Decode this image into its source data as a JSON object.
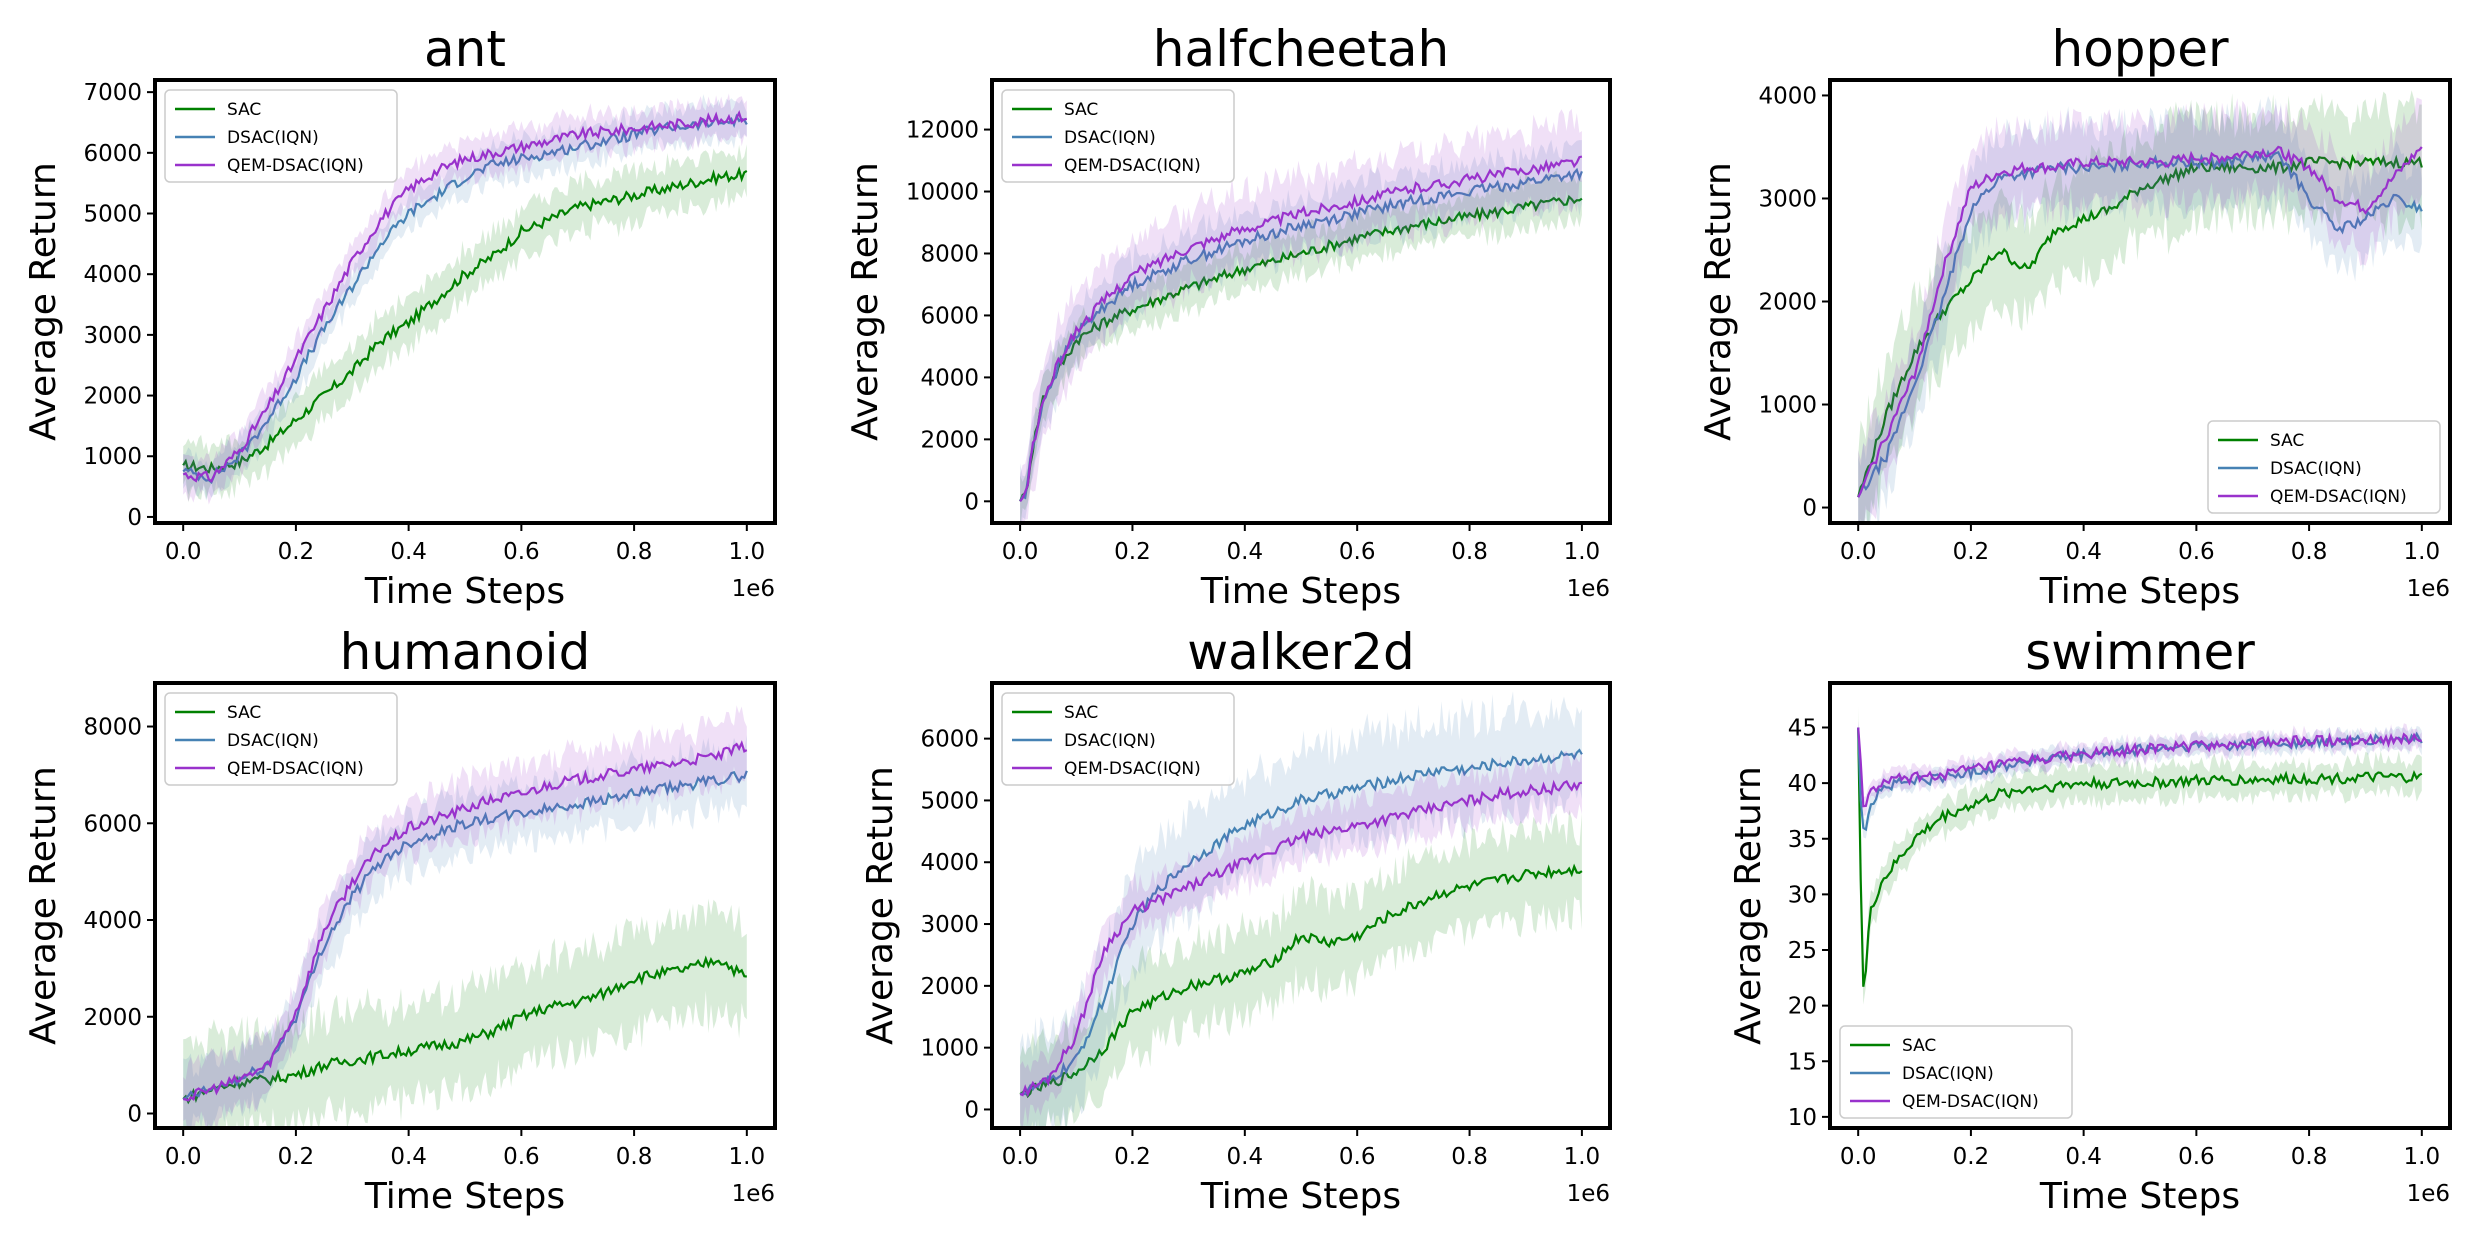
{
  "chart_data": [
    {
      "type": "line",
      "title": "ant",
      "xlabel": "Time Steps",
      "ylabel": "Average Return",
      "x_offset_label": "1e6",
      "xlim": [
        -0.05,
        1.05
      ],
      "ylim": [
        -100,
        7200
      ],
      "xticks": [
        0.0,
        0.2,
        0.4,
        0.6,
        0.8,
        1.0
      ],
      "xtick_labels": [
        "0.0",
        "0.2",
        "0.4",
        "0.6",
        "0.8",
        "1.0"
      ],
      "yticks": [
        0,
        1000,
        2000,
        3000,
        4000,
        5000,
        6000,
        7000
      ],
      "ytick_labels": [
        "0",
        "1000",
        "2000",
        "3000",
        "4000",
        "5000",
        "6000",
        "7000"
      ],
      "legend_loc": "upper-left",
      "series": [
        {
          "name": "SAC",
          "x": [
            0,
            0.05,
            0.1,
            0.15,
            0.2,
            0.25,
            0.3,
            0.35,
            0.4,
            0.45,
            0.5,
            0.55,
            0.6,
            0.65,
            0.7,
            0.75,
            0.8,
            0.85,
            0.9,
            0.95,
            1.0
          ],
          "y": [
            850,
            800,
            900,
            1200,
            1600,
            2000,
            2400,
            2900,
            3200,
            3600,
            4000,
            4300,
            4700,
            4900,
            5100,
            5200,
            5300,
            5400,
            5500,
            5600,
            5650
          ],
          "band": 400
        },
        {
          "name": "DSAC(IQN)",
          "x": [
            0,
            0.05,
            0.1,
            0.15,
            0.2,
            0.25,
            0.3,
            0.35,
            0.4,
            0.45,
            0.5,
            0.55,
            0.6,
            0.65,
            0.7,
            0.75,
            0.8,
            0.85,
            0.9,
            0.95,
            1.0
          ],
          "y": [
            750,
            650,
            1000,
            1600,
            2300,
            3100,
            3800,
            4500,
            5000,
            5300,
            5600,
            5800,
            5900,
            6000,
            6100,
            6200,
            6300,
            6400,
            6450,
            6500,
            6550
          ],
          "band": 300
        },
        {
          "name": "QEM-DSAC(IQN)",
          "x": [
            0,
            0.05,
            0.1,
            0.15,
            0.2,
            0.25,
            0.3,
            0.35,
            0.4,
            0.45,
            0.5,
            0.55,
            0.6,
            0.65,
            0.7,
            0.75,
            0.8,
            0.85,
            0.9,
            0.95,
            1.0
          ],
          "y": [
            700,
            650,
            1100,
            1800,
            2600,
            3400,
            4200,
            4900,
            5400,
            5700,
            5900,
            6000,
            6100,
            6200,
            6300,
            6350,
            6400,
            6450,
            6500,
            6550,
            6600
          ],
          "band": 300
        }
      ]
    },
    {
      "type": "line",
      "title": "halfcheetah",
      "xlabel": "Time Steps",
      "ylabel": "Average Return",
      "x_offset_label": "1e6",
      "xlim": [
        -0.05,
        1.05
      ],
      "ylim": [
        -700,
        13600
      ],
      "xticks": [
        0.0,
        0.2,
        0.4,
        0.6,
        0.8,
        1.0
      ],
      "xtick_labels": [
        "0.0",
        "0.2",
        "0.4",
        "0.6",
        "0.8",
        "1.0"
      ],
      "yticks": [
        0,
        2000,
        4000,
        6000,
        8000,
        10000,
        12000
      ],
      "ytick_labels": [
        "0",
        "2000",
        "4000",
        "6000",
        "8000",
        "10000",
        "12000"
      ],
      "legend_loc": "upper-left",
      "series": [
        {
          "name": "SAC",
          "x": [
            0,
            0.01,
            0.02,
            0.04,
            0.06,
            0.08,
            0.1,
            0.15,
            0.2,
            0.3,
            0.4,
            0.5,
            0.6,
            0.7,
            0.8,
            0.9,
            1.0
          ],
          "y": [
            0,
            200,
            1500,
            3300,
            4000,
            4600,
            5200,
            5800,
            6200,
            6900,
            7500,
            8000,
            8500,
            8900,
            9200,
            9500,
            9800
          ],
          "band": 700
        },
        {
          "name": "DSAC(IQN)",
          "x": [
            0,
            0.01,
            0.02,
            0.04,
            0.06,
            0.08,
            0.1,
            0.15,
            0.2,
            0.3,
            0.4,
            0.5,
            0.6,
            0.7,
            0.8,
            0.9,
            1.0
          ],
          "y": [
            0,
            200,
            1500,
            3200,
            4000,
            4800,
            5400,
            6300,
            7000,
            7800,
            8400,
            8900,
            9300,
            9700,
            10000,
            10300,
            10600
          ],
          "band": 900
        },
        {
          "name": "QEM-DSAC(IQN)",
          "x": [
            0,
            0.01,
            0.02,
            0.04,
            0.06,
            0.08,
            0.1,
            0.15,
            0.2,
            0.3,
            0.4,
            0.5,
            0.6,
            0.7,
            0.8,
            0.9,
            1.0
          ],
          "y": [
            0,
            200,
            1500,
            3200,
            4100,
            4900,
            5500,
            6500,
            7300,
            8200,
            8800,
            9300,
            9700,
            10100,
            10400,
            10700,
            11000
          ],
          "band": 1200
        }
      ]
    },
    {
      "type": "line",
      "title": "hopper",
      "xlabel": "Time Steps",
      "ylabel": "Average Return",
      "x_offset_label": "1e6",
      "xlim": [
        -0.05,
        1.05
      ],
      "ylim": [
        -150,
        4150
      ],
      "xticks": [
        0.0,
        0.2,
        0.4,
        0.6,
        0.8,
        1.0
      ],
      "xtick_labels": [
        "0.0",
        "0.2",
        "0.4",
        "0.6",
        "0.8",
        "1.0"
      ],
      "yticks": [
        0,
        1000,
        2000,
        3000,
        4000
      ],
      "ytick_labels": [
        "0",
        "1000",
        "2000",
        "3000",
        "4000"
      ],
      "legend_loc": "lower-right",
      "series": [
        {
          "name": "SAC",
          "x": [
            0,
            0.05,
            0.1,
            0.15,
            0.2,
            0.25,
            0.3,
            0.35,
            0.4,
            0.45,
            0.5,
            0.55,
            0.6,
            0.65,
            0.7,
            0.75,
            0.8,
            0.85,
            0.9,
            0.95,
            1.0
          ],
          "y": [
            100,
            900,
            1500,
            1900,
            2200,
            2500,
            2300,
            2700,
            2800,
            2900,
            3100,
            3200,
            3300,
            3300,
            3300,
            3300,
            3350,
            3350,
            3350,
            3350,
            3350
          ],
          "band": 500
        },
        {
          "name": "DSAC(IQN)",
          "x": [
            0,
            0.05,
            0.1,
            0.15,
            0.2,
            0.25,
            0.3,
            0.35,
            0.4,
            0.45,
            0.5,
            0.55,
            0.6,
            0.65,
            0.7,
            0.75,
            0.8,
            0.85,
            0.9,
            0.95,
            1.0
          ],
          "y": [
            100,
            500,
            1200,
            2000,
            2900,
            3200,
            3250,
            3300,
            3300,
            3300,
            3350,
            3350,
            3350,
            3350,
            3400,
            3400,
            3000,
            2700,
            2800,
            3000,
            2900
          ],
          "band": 400
        },
        {
          "name": "QEM-DSAC(IQN)",
          "x": [
            0,
            0.05,
            0.1,
            0.15,
            0.2,
            0.25,
            0.3,
            0.35,
            0.4,
            0.45,
            0.5,
            0.55,
            0.6,
            0.65,
            0.7,
            0.75,
            0.8,
            0.85,
            0.9,
            0.95,
            1.0
          ],
          "y": [
            100,
            700,
            1300,
            2300,
            3100,
            3250,
            3300,
            3300,
            3350,
            3350,
            3350,
            3350,
            3400,
            3400,
            3450,
            3450,
            3300,
            3000,
            2900,
            3200,
            3500
          ],
          "band": 400
        }
      ]
    },
    {
      "type": "line",
      "title": "humanoid",
      "xlabel": "Time Steps",
      "ylabel": "Average Return",
      "x_offset_label": "1e6",
      "xlim": [
        -0.05,
        1.05
      ],
      "ylim": [
        -300,
        8900
      ],
      "xticks": [
        0.0,
        0.2,
        0.4,
        0.6,
        0.8,
        1.0
      ],
      "xtick_labels": [
        "0.0",
        "0.2",
        "0.4",
        "0.6",
        "0.8",
        "1.0"
      ],
      "yticks": [
        0,
        2000,
        4000,
        6000,
        8000
      ],
      "ytick_labels": [
        "0",
        "2000",
        "4000",
        "6000",
        "8000"
      ],
      "legend_loc": "upper-left",
      "series": [
        {
          "name": "SAC",
          "x": [
            0,
            0.05,
            0.1,
            0.15,
            0.2,
            0.25,
            0.3,
            0.35,
            0.4,
            0.45,
            0.5,
            0.55,
            0.6,
            0.65,
            0.7,
            0.75,
            0.8,
            0.85,
            0.9,
            0.95,
            1.0
          ],
          "y": [
            300,
            500,
            650,
            700,
            800,
            1000,
            1100,
            1200,
            1300,
            1400,
            1500,
            1700,
            2000,
            2200,
            2300,
            2500,
            2800,
            2900,
            3000,
            3200,
            2800
          ],
          "band": 1000
        },
        {
          "name": "DSAC(IQN)",
          "x": [
            0,
            0.05,
            0.1,
            0.15,
            0.2,
            0.25,
            0.3,
            0.35,
            0.4,
            0.45,
            0.5,
            0.55,
            0.6,
            0.65,
            0.7,
            0.75,
            0.8,
            0.85,
            0.9,
            0.95,
            1.0
          ],
          "y": [
            300,
            500,
            700,
            1000,
            2000,
            3500,
            4500,
            5200,
            5600,
            5800,
            6000,
            6100,
            6200,
            6300,
            6400,
            6500,
            6600,
            6700,
            6800,
            6900,
            7000
          ],
          "band": 600
        },
        {
          "name": "QEM-DSAC(IQN)",
          "x": [
            0,
            0.05,
            0.1,
            0.15,
            0.2,
            0.25,
            0.3,
            0.35,
            0.4,
            0.45,
            0.5,
            0.55,
            0.6,
            0.65,
            0.7,
            0.75,
            0.8,
            0.85,
            0.9,
            0.95,
            1.0
          ],
          "y": [
            300,
            500,
            700,
            1000,
            2100,
            3800,
            4800,
            5500,
            5900,
            6100,
            6300,
            6500,
            6600,
            6800,
            6900,
            7000,
            7100,
            7200,
            7300,
            7400,
            7600
          ],
          "band": 600
        }
      ]
    },
    {
      "type": "line",
      "title": "walker2d",
      "xlabel": "Time Steps",
      "ylabel": "Average Return",
      "x_offset_label": "1e6",
      "xlim": [
        -0.05,
        1.05
      ],
      "ylim": [
        -300,
        6900
      ],
      "xticks": [
        0.0,
        0.2,
        0.4,
        0.6,
        0.8,
        1.0
      ],
      "xtick_labels": [
        "0.0",
        "0.2",
        "0.4",
        "0.6",
        "0.8",
        "1.0"
      ],
      "yticks": [
        0,
        1000,
        2000,
        3000,
        4000,
        5000,
        6000
      ],
      "ytick_labels": [
        "0",
        "1000",
        "2000",
        "3000",
        "4000",
        "5000",
        "6000"
      ],
      "legend_loc": "upper-left",
      "series": [
        {
          "name": "SAC",
          "x": [
            0,
            0.05,
            0.1,
            0.15,
            0.2,
            0.25,
            0.3,
            0.35,
            0.4,
            0.45,
            0.5,
            0.55,
            0.6,
            0.65,
            0.7,
            0.75,
            0.8,
            0.85,
            0.9,
            0.95,
            1.0
          ],
          "y": [
            250,
            400,
            600,
            1000,
            1600,
            1800,
            2000,
            2100,
            2200,
            2400,
            2800,
            2700,
            2800,
            3100,
            3300,
            3500,
            3600,
            3700,
            3800,
            3850,
            3900
          ],
          "band": 700
        },
        {
          "name": "DSAC(IQN)",
          "x": [
            0,
            0.05,
            0.1,
            0.15,
            0.2,
            0.25,
            0.3,
            0.35,
            0.4,
            0.45,
            0.5,
            0.55,
            0.6,
            0.65,
            0.7,
            0.75,
            0.8,
            0.85,
            0.9,
            0.95,
            1.0
          ],
          "y": [
            250,
            450,
            800,
            1800,
            3000,
            3600,
            4000,
            4300,
            4600,
            4800,
            5000,
            5100,
            5200,
            5300,
            5400,
            5500,
            5500,
            5600,
            5650,
            5700,
            5750
          ],
          "band": 800
        },
        {
          "name": "QEM-DSAC(IQN)",
          "x": [
            0,
            0.05,
            0.1,
            0.15,
            0.2,
            0.25,
            0.3,
            0.35,
            0.4,
            0.45,
            0.5,
            0.55,
            0.6,
            0.65,
            0.7,
            0.75,
            0.8,
            0.85,
            0.9,
            0.95,
            1.0
          ],
          "y": [
            250,
            500,
            1200,
            2600,
            3200,
            3400,
            3600,
            3800,
            4000,
            4200,
            4400,
            4500,
            4600,
            4700,
            4800,
            4900,
            5000,
            5100,
            5150,
            5200,
            5250
          ],
          "band": 400
        }
      ]
    },
    {
      "type": "line",
      "title": "swimmer",
      "xlabel": "Time Steps",
      "ylabel": "Average Return",
      "x_offset_label": "1e6",
      "xlim": [
        -0.05,
        1.05
      ],
      "ylim": [
        9,
        49
      ],
      "xticks": [
        0.0,
        0.2,
        0.4,
        0.6,
        0.8,
        1.0
      ],
      "xtick_labels": [
        "0.0",
        "0.2",
        "0.4",
        "0.6",
        "0.8",
        "1.0"
      ],
      "yticks": [
        10,
        15,
        20,
        25,
        30,
        35,
        40,
        45
      ],
      "ytick_labels": [
        "10",
        "15",
        "20",
        "25",
        "30",
        "35",
        "40",
        "45"
      ],
      "legend_loc": "lower-left",
      "series": [
        {
          "name": "SAC",
          "x": [
            0,
            0.005,
            0.01,
            0.02,
            0.04,
            0.07,
            0.1,
            0.15,
            0.2,
            0.25,
            0.3,
            0.4,
            0.5,
            0.6,
            0.7,
            0.8,
            0.9,
            1.0
          ],
          "y": [
            45,
            30,
            20,
            28,
            31,
            33,
            35,
            37,
            38,
            39,
            39.5,
            40,
            40,
            40.2,
            40.3,
            40.4,
            40.5,
            40.5
          ],
          "band": 1.5
        },
        {
          "name": "DSAC(IQN)",
          "x": [
            0,
            0.005,
            0.01,
            0.02,
            0.04,
            0.07,
            0.1,
            0.15,
            0.2,
            0.25,
            0.3,
            0.4,
            0.5,
            0.6,
            0.7,
            0.8,
            0.9,
            1.0
          ],
          "y": [
            45,
            38,
            35,
            38,
            39.5,
            40,
            40.2,
            40.5,
            41,
            41.5,
            42,
            42.5,
            43,
            43.3,
            43.5,
            43.6,
            43.8,
            44
          ],
          "band": 0.8
        },
        {
          "name": "QEM-DSAC(IQN)",
          "x": [
            0,
            0.005,
            0.01,
            0.02,
            0.04,
            0.07,
            0.1,
            0.15,
            0.2,
            0.25,
            0.3,
            0.4,
            0.5,
            0.6,
            0.7,
            0.8,
            0.9,
            1.0
          ],
          "y": [
            45,
            42,
            37,
            39,
            40,
            40.3,
            40.5,
            40.8,
            41.2,
            41.6,
            42,
            42.6,
            43,
            43.4,
            43.6,
            43.8,
            43.9,
            44
          ],
          "band": 0.8
        }
      ]
    }
  ],
  "colors": {
    "SAC": "#008000",
    "DSAC(IQN)": "#4682b4",
    "QEM-DSAC(IQN)": "#9932cc"
  }
}
